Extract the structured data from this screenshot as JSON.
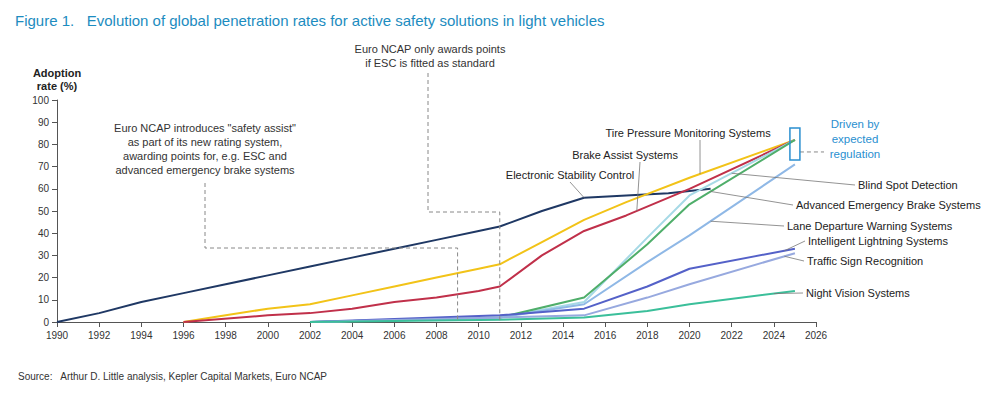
{
  "chart_data": {
    "type": "line",
    "title": "Figure 1.   Evolution of global penetration rates for active safety solutions in light vehicles",
    "y_label": "Adoption\nrate (%)",
    "source": "Source:   Arthur D. Little analysis, Kepler Capital Markets, Euro NCAP",
    "xlim": [
      1990,
      2026
    ],
    "xticks": [
      1990,
      1992,
      1994,
      1996,
      1998,
      2000,
      2002,
      2004,
      2006,
      2008,
      2010,
      2012,
      2014,
      2016,
      2018,
      2020,
      2022,
      2024,
      2026
    ],
    "ylim": [
      0,
      100
    ],
    "yticks": [
      0,
      10,
      20,
      30,
      40,
      50,
      60,
      70,
      80,
      90,
      100
    ],
    "grid": false,
    "series": [
      {
        "name": "Electronic Stability Control",
        "color": "#1f3864",
        "x": [
          1990,
          1992,
          1994,
          1996,
          1998,
          2000,
          2002,
          2004,
          2006,
          2008,
          2010,
          2011,
          2013,
          2015,
          2017,
          2019,
          2021
        ],
        "values": [
          0,
          4,
          9,
          13,
          17,
          21,
          25,
          29,
          33,
          37,
          41,
          43,
          50,
          56,
          57,
          58,
          60
        ]
      },
      {
        "name": "Tire Pressure Monitoring Systems",
        "color": "#f2c318",
        "x": [
          1996,
          1998,
          2000,
          2002,
          2004,
          2006,
          2008,
          2010,
          2011,
          2013,
          2015,
          2017,
          2020,
          2025
        ],
        "values": [
          0,
          3,
          6,
          8,
          12,
          16,
          20,
          24,
          26,
          36,
          46,
          54,
          65,
          82
        ]
      },
      {
        "name": "Brake Assist Systems",
        "color": "#c0304a",
        "x": [
          1996,
          2000,
          2002,
          2004,
          2006,
          2008,
          2010,
          2011,
          2013,
          2015,
          2017,
          2020,
          2025
        ],
        "values": [
          0,
          3,
          4,
          6,
          9,
          11,
          14,
          16,
          30,
          41,
          48,
          60,
          82
        ]
      },
      {
        "name": "Blind Spot Detection",
        "color": "#a6d9e6",
        "x": [
          2002,
          2011,
          2015,
          2018,
          2020,
          2025
        ],
        "values": [
          0,
          2,
          9,
          38,
          57,
          82
        ]
      },
      {
        "name": "Advanced Emergency Brake Systems",
        "color": "#4fae6a",
        "x": [
          2002,
          2011,
          2015,
          2018,
          2020,
          2025
        ],
        "values": [
          0,
          2,
          11,
          35,
          53,
          82
        ]
      },
      {
        "name": "Lane Departure Warning Systems",
        "color": "#8fb8e6",
        "x": [
          2002,
          2011,
          2015,
          2018,
          2020,
          2025
        ],
        "values": [
          0,
          2,
          8,
          27,
          39,
          71
        ]
      },
      {
        "name": "Intelligent Lightning Systems",
        "color": "#5461c8",
        "x": [
          2002,
          2011,
          2015,
          2018,
          2020,
          2025
        ],
        "values": [
          0,
          3,
          6,
          16,
          24,
          33
        ]
      },
      {
        "name": "Traffic Sign Recognition",
        "color": "#97a9df",
        "x": [
          2002,
          2011,
          2015,
          2018,
          2020,
          2025
        ],
        "values": [
          0,
          2,
          3,
          11,
          17,
          31
        ]
      },
      {
        "name": "Night Vision Systems",
        "color": "#3bbf9a",
        "x": [
          2002,
          2011,
          2015,
          2018,
          2020,
          2025
        ],
        "values": [
          0,
          1,
          2,
          5,
          8,
          14
        ]
      }
    ],
    "annotations": [
      {
        "text": "Euro NCAP introduces \"safety assist\"\nas part of its new rating system,\nawarding points for, e.g. ESC and\nadvanced emergency brake systems",
        "x": 2009
      },
      {
        "text": "Euro NCAP only awards points\nif ESC is fitted as standard",
        "x": 2011
      },
      {
        "text": "Driven by\nexpected\nregulation",
        "x": 2025
      }
    ]
  }
}
